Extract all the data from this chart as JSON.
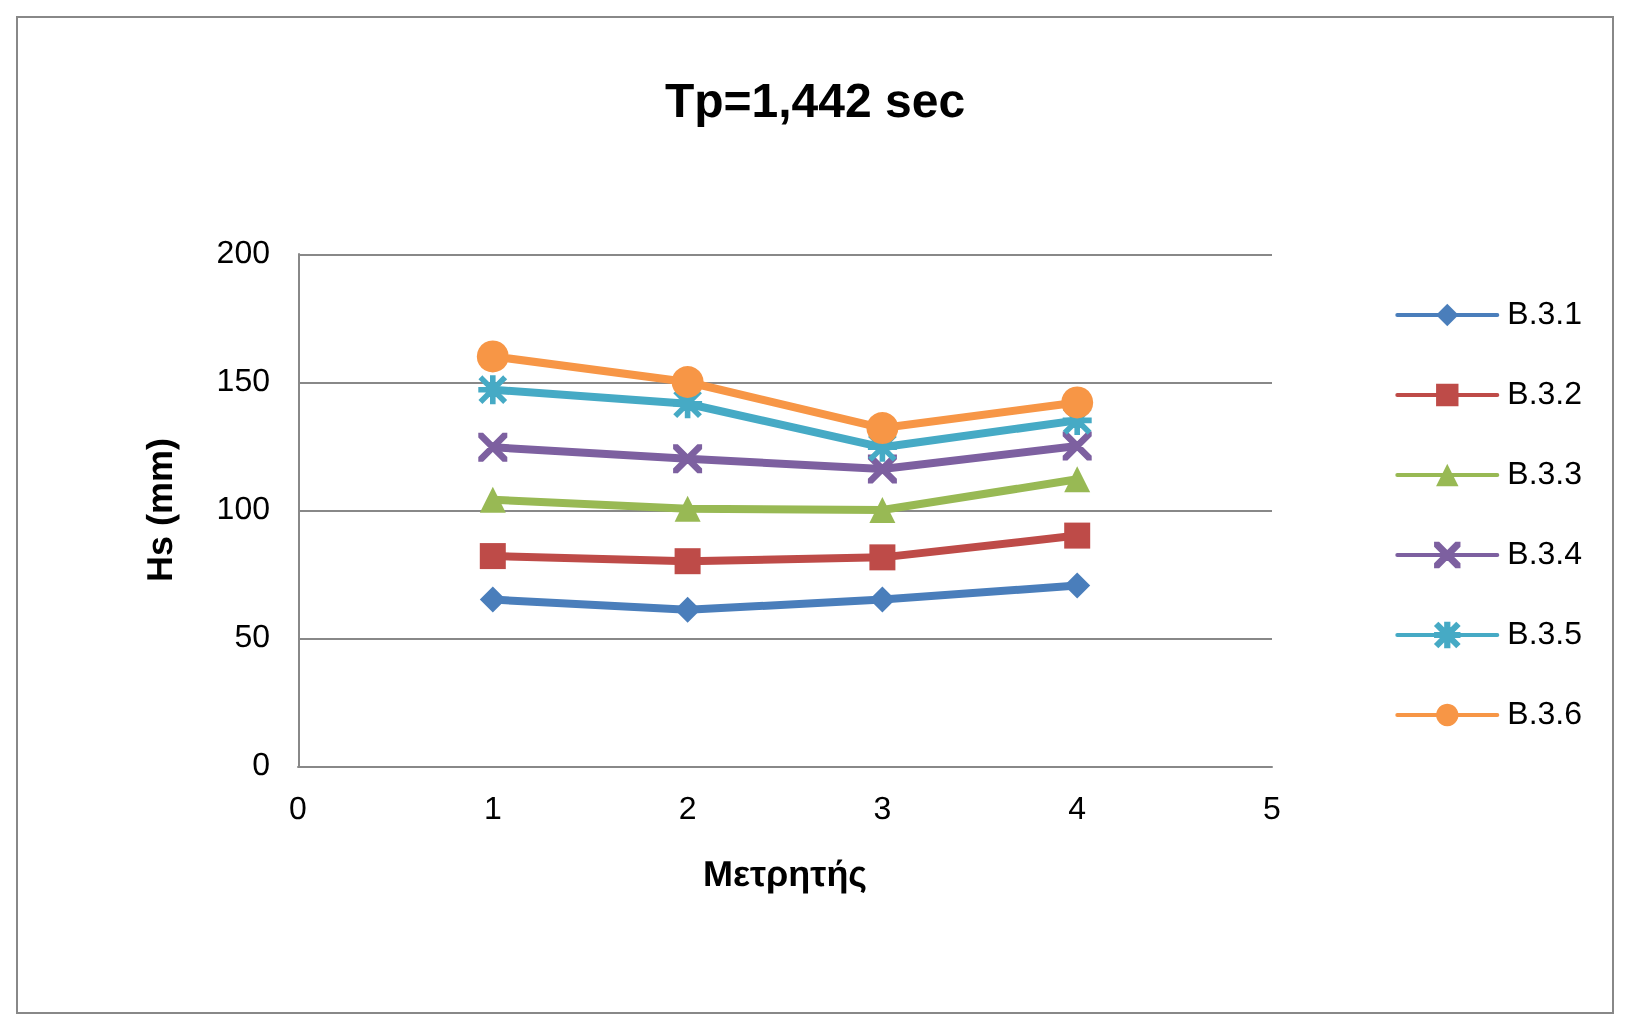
{
  "chart_data": {
    "type": "line",
    "title": "Tp=1,442 sec",
    "xlabel": "Μετρητής",
    "ylabel": "Hs (mm)",
    "x": [
      1,
      2,
      3,
      4
    ],
    "xlim": [
      0,
      5
    ],
    "xticks": [
      0,
      1,
      2,
      3,
      4,
      5
    ],
    "ylim": [
      0,
      200
    ],
    "yticks": [
      0,
      50,
      100,
      150,
      200
    ],
    "grid": "y",
    "legend": "right",
    "line_style": "solid",
    "series": [
      {
        "name": "B.3.1",
        "color": "#4a7ebb",
        "marker": "diamond",
        "values": [
          65,
          61,
          65,
          70.5
        ]
      },
      {
        "name": "B.3.2",
        "color": "#be4b48",
        "marker": "square",
        "values": [
          82,
          80,
          81.5,
          90
        ]
      },
      {
        "name": "B.3.3",
        "color": "#98b954",
        "marker": "triangle",
        "values": [
          104,
          100.5,
          100,
          112
        ]
      },
      {
        "name": "B.3.4",
        "color": "#7d60a0",
        "marker": "cross",
        "values": [
          124.5,
          120,
          116,
          125
        ]
      },
      {
        "name": "B.3.5",
        "color": "#46aac5",
        "marker": "star",
        "values": [
          147,
          141.5,
          124.5,
          135
        ]
      },
      {
        "name": "B.3.6",
        "color": "#f79646",
        "marker": "circle",
        "values": [
          160,
          150,
          132,
          142
        ]
      }
    ]
  }
}
